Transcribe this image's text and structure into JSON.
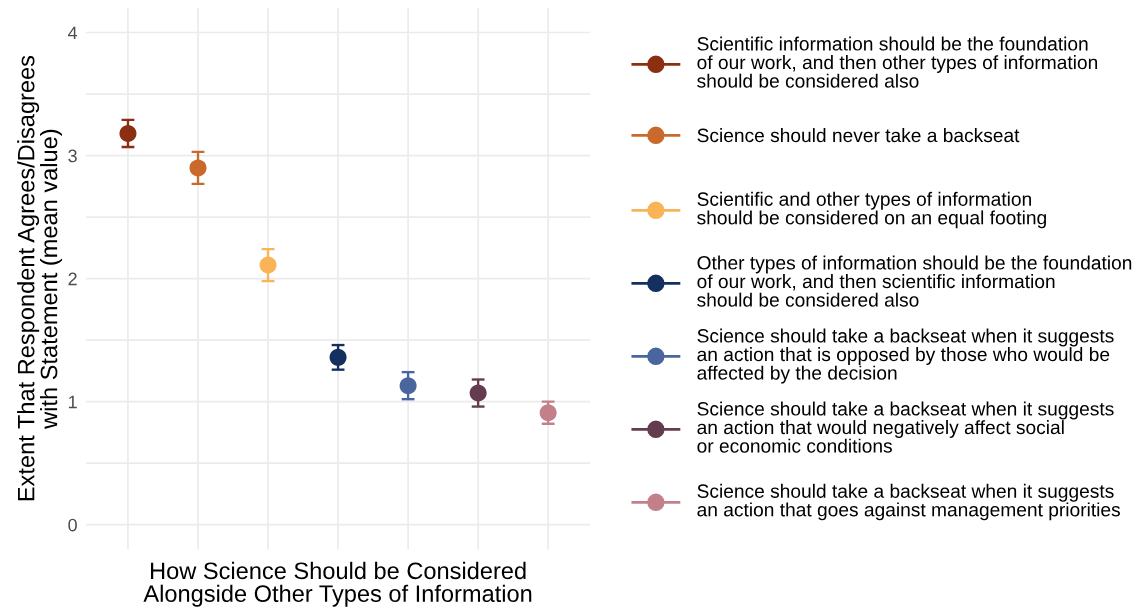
{
  "chart_data": {
    "type": "scatter",
    "xlabel": "How Science Should be Considered\nAlongside Other Types of Information",
    "ylabel": "Extent That Respondent Agrees/Disagrees\nwith Statement (mean value)",
    "categories": [
      null,
      null,
      null,
      null,
      null,
      null,
      null
    ],
    "series": [
      {
        "name": "Scientific information should be the foundation\nof our work, and then other types of information\nshould be considered also",
        "color": "#8c2e10",
        "values": [
          3.18,
          null,
          null,
          null,
          null,
          null,
          null
        ],
        "errors": [
          0.11,
          null,
          null,
          null,
          null,
          null,
          null
        ]
      },
      {
        "name": "Science should never take a backseat",
        "color": "#c96a2c",
        "values": [
          null,
          2.9,
          null,
          null,
          null,
          null,
          null
        ],
        "errors": [
          null,
          0.13,
          null,
          null,
          null,
          null,
          null
        ]
      },
      {
        "name": "Scientific and other types of information\nshould be considered on an equal footing",
        "color": "#f8b457",
        "values": [
          null,
          null,
          2.11,
          null,
          null,
          null,
          null
        ],
        "errors": [
          null,
          null,
          0.13,
          null,
          null,
          null,
          null
        ]
      },
      {
        "name": "Other types of information should be the foundation\nof our work, and then scientific information\nshould be considered also",
        "color": "#14305e",
        "values": [
          null,
          null,
          null,
          1.36,
          null,
          null,
          null
        ],
        "errors": [
          null,
          null,
          null,
          0.1,
          null,
          null,
          null
        ]
      },
      {
        "name": "Science should take a backseat when it suggests\nan action that is opposed by those who would be\naffected by the decision",
        "color": "#49669f",
        "values": [
          null,
          null,
          null,
          null,
          1.13,
          null,
          null
        ],
        "errors": [
          null,
          null,
          null,
          null,
          0.11,
          null,
          null
        ]
      },
      {
        "name": "Science should take a backseat when it suggests\nan action that would negatively affect social\nor economic conditions",
        "color": "#633d4f",
        "values": [
          null,
          null,
          null,
          null,
          null,
          1.07,
          null
        ],
        "errors": [
          null,
          null,
          null,
          null,
          null,
          0.11,
          null
        ]
      },
      {
        "name": "Science should take a backseat when it suggests\nan action that goes against management priorities",
        "color": "#c3808a",
        "values": [
          null,
          null,
          null,
          null,
          null,
          null,
          0.91
        ],
        "errors": [
          null,
          null,
          null,
          null,
          null,
          null,
          0.09
        ]
      }
    ],
    "ylim": [
      -0.2,
      4.2
    ],
    "yticks": [
      0,
      {
        "value": 0.5,
        "label": null
      },
      1,
      {
        "value": 1.5,
        "label": null
      },
      2,
      {
        "value": 2.5,
        "label": null
      },
      3,
      {
        "value": 3.5,
        "label": null
      },
      4
    ],
    "grid": true,
    "legend": "right",
    "marker": "circle"
  }
}
